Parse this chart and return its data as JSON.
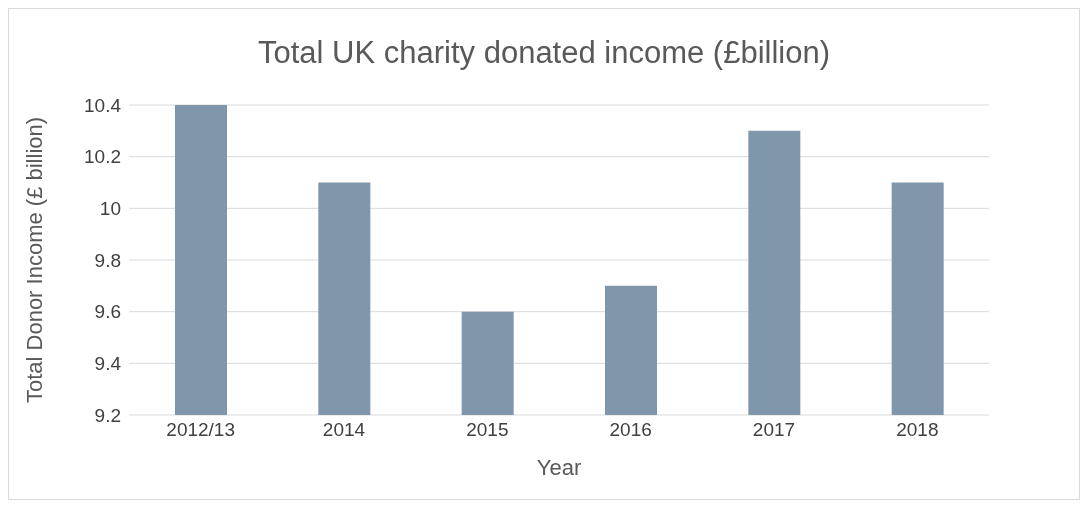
{
  "chart_data": {
    "type": "bar",
    "title": "Total UK charity donated income (£billion)",
    "xlabel": "Year",
    "ylabel": "Total Donor Income (£ billion)",
    "categories": [
      "2012/13",
      "2014",
      "2015",
      "2016",
      "2017",
      "2018"
    ],
    "values": [
      10.4,
      10.1,
      9.6,
      9.7,
      10.3,
      10.1
    ],
    "color": "#7f96ab",
    "ylim": [
      9.2,
      10.4
    ],
    "yticks": [
      9.2,
      9.4,
      9.6,
      9.8,
      10,
      10.2,
      10.4
    ],
    "grid": "y"
  }
}
